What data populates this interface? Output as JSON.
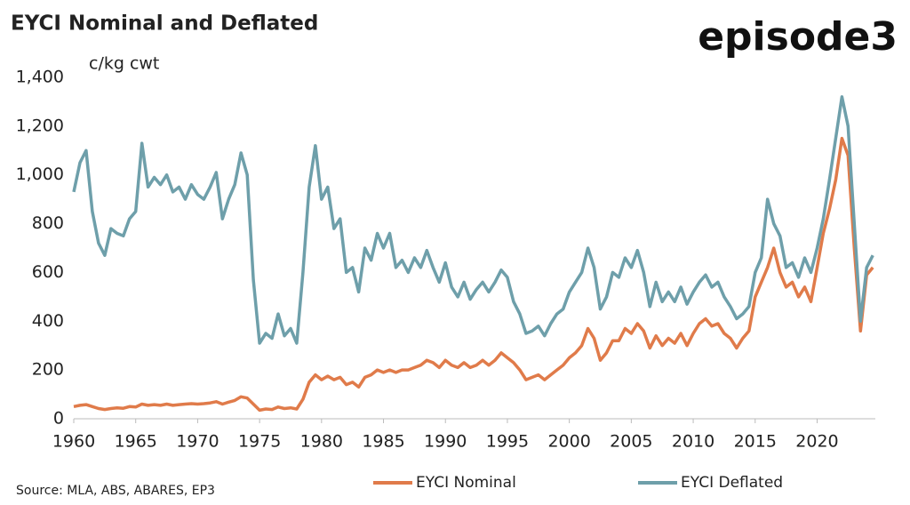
{
  "logo": "episode3",
  "chart_data": {
    "type": "line",
    "title": "EYCI Nominal and Deflated",
    "y_label": "c/kg cwt",
    "source": "Source: MLA, ABS, ABARES, EP3",
    "x": [
      1960,
      1960.5,
      1961,
      1961.5,
      1962,
      1962.5,
      1963,
      1963.5,
      1964,
      1964.5,
      1965,
      1965.5,
      1966,
      1966.5,
      1967,
      1967.5,
      1968,
      1968.5,
      1969,
      1969.5,
      1970,
      1970.5,
      1971,
      1971.5,
      1972,
      1972.5,
      1973,
      1973.5,
      1974,
      1974.5,
      1975,
      1975.5,
      1976,
      1976.5,
      1977,
      1977.5,
      1978,
      1978.5,
      1979,
      1979.5,
      1980,
      1980.5,
      1981,
      1981.5,
      1982,
      1982.5,
      1983,
      1983.5,
      1984,
      1984.5,
      1985,
      1985.5,
      1986,
      1986.5,
      1987,
      1987.5,
      1988,
      1988.5,
      1989,
      1989.5,
      1990,
      1990.5,
      1991,
      1991.5,
      1992,
      1992.5,
      1993,
      1993.5,
      1994,
      1994.5,
      1995,
      1995.5,
      1996,
      1996.5,
      1997,
      1997.5,
      1998,
      1998.5,
      1999,
      1999.5,
      2000,
      2000.5,
      2001,
      2001.5,
      2002,
      2002.5,
      2003,
      2003.5,
      2004,
      2004.5,
      2005,
      2005.5,
      2006,
      2006.5,
      2007,
      2007.5,
      2008,
      2008.5,
      2009,
      2009.5,
      2010,
      2010.5,
      2011,
      2011.5,
      2012,
      2012.5,
      2013,
      2013.5,
      2014,
      2014.5,
      2015,
      2015.5,
      2016,
      2016.5,
      2017,
      2017.5,
      2018,
      2018.5,
      2019,
      2019.5,
      2020,
      2020.5,
      2021,
      2021.5,
      2022,
      2022.5,
      2023,
      2023.5,
      2024,
      2024.5
    ],
    "series": [
      {
        "name": "EYCI Nominal",
        "color": "#e07b4a",
        "values": [
          50,
          55,
          58,
          50,
          42,
          38,
          42,
          45,
          43,
          50,
          48,
          60,
          55,
          58,
          55,
          60,
          55,
          58,
          60,
          62,
          60,
          62,
          65,
          70,
          60,
          68,
          75,
          90,
          85,
          60,
          35,
          40,
          38,
          48,
          42,
          45,
          40,
          80,
          150,
          180,
          160,
          175,
          160,
          170,
          140,
          150,
          130,
          170,
          180,
          200,
          190,
          200,
          190,
          200,
          200,
          210,
          220,
          240,
          230,
          210,
          240,
          220,
          210,
          230,
          210,
          220,
          240,
          220,
          240,
          270,
          250,
          230,
          200,
          160,
          170,
          180,
          160,
          180,
          200,
          220,
          250,
          270,
          300,
          370,
          330,
          240,
          270,
          320,
          320,
          370,
          350,
          390,
          360,
          290,
          340,
          300,
          330,
          310,
          350,
          300,
          350,
          390,
          410,
          380,
          390,
          350,
          330,
          290,
          330,
          360,
          500,
          560,
          620,
          700,
          600,
          540,
          560,
          500,
          540,
          480,
          620,
          760,
          860,
          980,
          1150,
          1080,
          700,
          360,
          590,
          620
        ]
      },
      {
        "name": "EYCI Deflated",
        "color": "#6e9faa",
        "values": [
          930,
          1050,
          1100,
          850,
          720,
          670,
          780,
          760,
          750,
          820,
          850,
          1130,
          950,
          990,
          960,
          1000,
          930,
          950,
          900,
          960,
          920,
          900,
          950,
          1010,
          820,
          900,
          960,
          1090,
          1000,
          570,
          310,
          350,
          330,
          430,
          340,
          370,
          310,
          600,
          950,
          1120,
          900,
          950,
          780,
          820,
          600,
          620,
          520,
          700,
          650,
          760,
          700,
          760,
          620,
          650,
          600,
          660,
          620,
          690,
          620,
          560,
          640,
          540,
          500,
          560,
          490,
          530,
          560,
          520,
          560,
          610,
          580,
          480,
          430,
          350,
          360,
          380,
          340,
          390,
          430,
          450,
          520,
          560,
          600,
          700,
          620,
          450,
          500,
          600,
          580,
          660,
          620,
          690,
          600,
          460,
          560,
          480,
          520,
          480,
          540,
          470,
          520,
          560,
          590,
          540,
          560,
          500,
          460,
          410,
          430,
          460,
          600,
          660,
          900,
          800,
          750,
          620,
          640,
          580,
          660,
          600,
          700,
          820,
          980,
          1150,
          1320,
          1200,
          800,
          400,
          620,
          670
        ]
      }
    ],
    "xlim": [
      1960,
      2024.7
    ],
    "xticks": [
      1960,
      1965,
      1970,
      1975,
      1980,
      1985,
      1990,
      1995,
      2000,
      2005,
      2010,
      2015,
      2020
    ],
    "ylim": [
      0,
      1400
    ],
    "yticks": [
      0,
      200,
      400,
      600,
      800,
      {
        "value": 1000,
        "label": "1,000"
      },
      {
        "value": 1200,
        "label": "1,200"
      },
      {
        "value": 1400,
        "label": "1,400"
      }
    ],
    "grid": false,
    "legend": "bottom"
  }
}
